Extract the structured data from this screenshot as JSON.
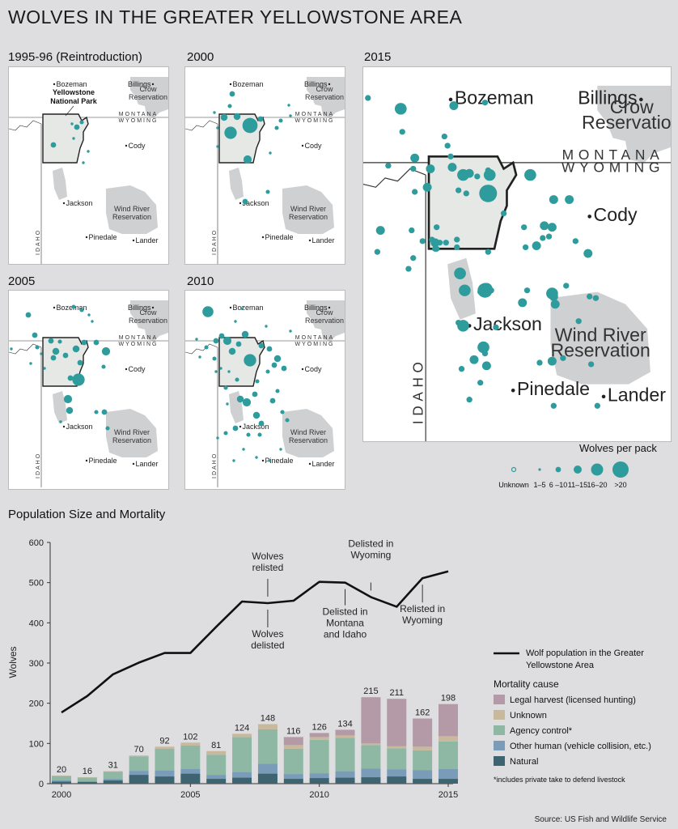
{
  "title": "WOLVES IN THE GREATER YELLOWSTONE AREA",
  "colors": {
    "wolf": "#2e9c9c",
    "park": "#e6e8e6",
    "terrain": "#cfd0d2",
    "legal": "#b39aa6",
    "unknown": "#c8b89c",
    "agency": "#8fb8a4",
    "other_human": "#7a9cb8",
    "natural": "#3d6470"
  },
  "maps": {
    "labels": {
      "bozeman": "Bozeman",
      "billings": "Billings",
      "crow1": "Crow",
      "crow2": "Reservation",
      "cody": "Cody",
      "jackson": "Jackson",
      "wind1": "Wind River",
      "wind2": "Reservation",
      "pinedale": "Pinedale",
      "lander": "Lander",
      "montana": "MONTANA",
      "wyoming": "WYOMING",
      "idaho": "IDAHO",
      "park1": "Yellowstone",
      "park2": "National Park"
    },
    "panels": [
      {
        "name": "1995-96",
        "label": "1995-96 (Reintroduction)"
      },
      {
        "name": "2000",
        "label": "2000"
      },
      {
        "name": "2005",
        "label": "2005"
      },
      {
        "name": "2010",
        "label": "2010"
      },
      {
        "name": "2015",
        "label": "2015"
      }
    ]
  },
  "pack_legend": {
    "title": "Wolves per pack",
    "sizes": [
      "Unknown",
      "1–5",
      "6 –10",
      "11–15",
      "16–20",
      ">20"
    ]
  },
  "chart_title": "Population Size and Mortality",
  "source": "Source: US Fish and Wildlife Service",
  "chart_data": {
    "type": "bar",
    "title": "Population Size and Mortality",
    "ylabel": "Wolves",
    "xlabel": "",
    "ylim": [
      0,
      600
    ],
    "yticks": [
      0,
      100,
      200,
      300,
      400,
      500,
      600
    ],
    "xticks": [
      2000,
      2005,
      2010,
      2015
    ],
    "years": [
      2000,
      2001,
      2002,
      2003,
      2004,
      2005,
      2006,
      2007,
      2008,
      2009,
      2010,
      2011,
      2012,
      2013,
      2014,
      2015
    ],
    "mortality_totals": [
      20,
      16,
      31,
      70,
      92,
      102,
      81,
      124,
      148,
      116,
      126,
      134,
      215,
      211,
      162,
      198
    ],
    "series": [
      {
        "name": "Natural",
        "values": [
          5,
          4,
          8,
          22,
          18,
          25,
          12,
          15,
          25,
          12,
          14,
          15,
          16,
          18,
          12,
          12
        ]
      },
      {
        "name": "Other human (vehicle collision, etc.)",
        "values": [
          3,
          2,
          4,
          10,
          15,
          12,
          10,
          14,
          25,
          12,
          12,
          16,
          22,
          18,
          22,
          25
        ]
      },
      {
        "name": "Agency control*",
        "values": [
          11,
          9,
          18,
          36,
          54,
          58,
          50,
          87,
          85,
          63,
          83,
          83,
          58,
          52,
          49,
          68
        ]
      },
      {
        "name": "Unknown",
        "values": [
          1,
          1,
          1,
          2,
          5,
          7,
          9,
          8,
          13,
          9,
          7,
          6,
          4,
          5,
          9,
          13
        ]
      },
      {
        "name": "Legal harvest (licensed hunting)",
        "values": [
          0,
          0,
          0,
          0,
          0,
          0,
          0,
          0,
          0,
          20,
          10,
          14,
          115,
          118,
          70,
          80
        ]
      }
    ],
    "population_line": {
      "name": "Wolf population in the Greater Yellowstone Area",
      "values": [
        177,
        218,
        272,
        301,
        325,
        325,
        390,
        453,
        449,
        455,
        502,
        500,
        464,
        440,
        511,
        528
      ]
    },
    "annotations": [
      {
        "year": 2008,
        "text": [
          "Wolves",
          "relisted"
        ],
        "position": "above"
      },
      {
        "year": 2008,
        "text": [
          "Wolves",
          "delisted"
        ],
        "position": "below"
      },
      {
        "year": 2011,
        "text": [
          "Delisted in",
          "Montana",
          "and Idaho"
        ],
        "position": "below"
      },
      {
        "year": 2012,
        "text": [
          "Delisted in",
          "Wyoming"
        ],
        "position": "above"
      },
      {
        "year": 2014,
        "text": [
          "Relisted in",
          "Wyoming"
        ],
        "position": "below"
      }
    ],
    "legend": {
      "line_label": [
        "Wolf population in the Greater",
        "Yellowstone Area"
      ],
      "mortality_title": "Mortality cause",
      "footnote": "*includes private take to defend livestock"
    }
  }
}
